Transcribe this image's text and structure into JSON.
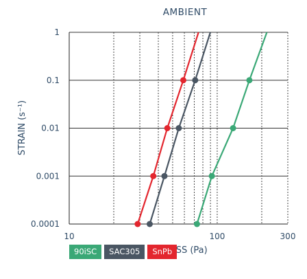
{
  "chart_data": {
    "type": "line",
    "title": "AMBIENT",
    "xlabel": "STRESS (Pa)",
    "ylabel": "STRAIN (s⁻¹)",
    "x_scale": "log",
    "y_scale": "log",
    "xlim": [
      10,
      300
    ],
    "ylim": [
      0.0001,
      1
    ],
    "x_ticks": [
      "10",
      "100",
      "300"
    ],
    "y_ticks": [
      "1",
      "0.1",
      "0.01",
      "0.001",
      "0.0001"
    ],
    "grid": {
      "x_minor_dotted": true,
      "y_major_solid": true
    },
    "legend": "bottom-left",
    "series": [
      {
        "name": "90iSC",
        "color": "#3aa876",
        "x": [
          73,
          92,
          128,
          165
        ],
        "y": [
          0.0001,
          0.001,
          0.01,
          0.1
        ]
      },
      {
        "name": "SAC305",
        "color": "#4a5663",
        "x": [
          35,
          44,
          55,
          71
        ],
        "y": [
          0.0001,
          0.001,
          0.01,
          0.1
        ]
      },
      {
        "name": "SnPb",
        "color": "#e3262e",
        "x": [
          29,
          37,
          46,
          59
        ],
        "y": [
          0.0001,
          0.001,
          0.01,
          0.1
        ]
      }
    ],
    "line_extend_to_y": 1
  }
}
